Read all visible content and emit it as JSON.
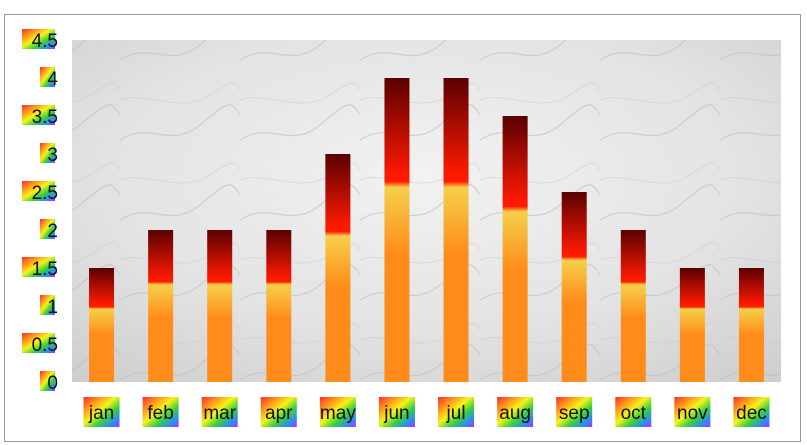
{
  "chart_data": {
    "type": "bar",
    "title": "",
    "xlabel": "",
    "ylabel": "",
    "categories": [
      "jan",
      "feb",
      "mar",
      "apr",
      "may",
      "jun",
      "jul",
      "aug",
      "sep",
      "oct",
      "nov",
      "dec"
    ],
    "series": [
      {
        "values": [
          1.5,
          2,
          2,
          2,
          3,
          4,
          4,
          3.5,
          2.5,
          2,
          1.5,
          1.5
        ]
      }
    ],
    "ylim": [
      0,
      4.5
    ],
    "yticks": [
      "0",
      "0.5",
      "1",
      "1.5",
      "2",
      "2.5",
      "3",
      "3.5",
      "4",
      "4.5"
    ],
    "grid": false,
    "legend": "none",
    "colors": {
      "bar_base": "#ff8c1a",
      "bar_mid": "#f5d04a",
      "bar_red": "#ff1a00",
      "bar_top": "#5a0000",
      "plot_background": "#e6e6e6"
    }
  }
}
